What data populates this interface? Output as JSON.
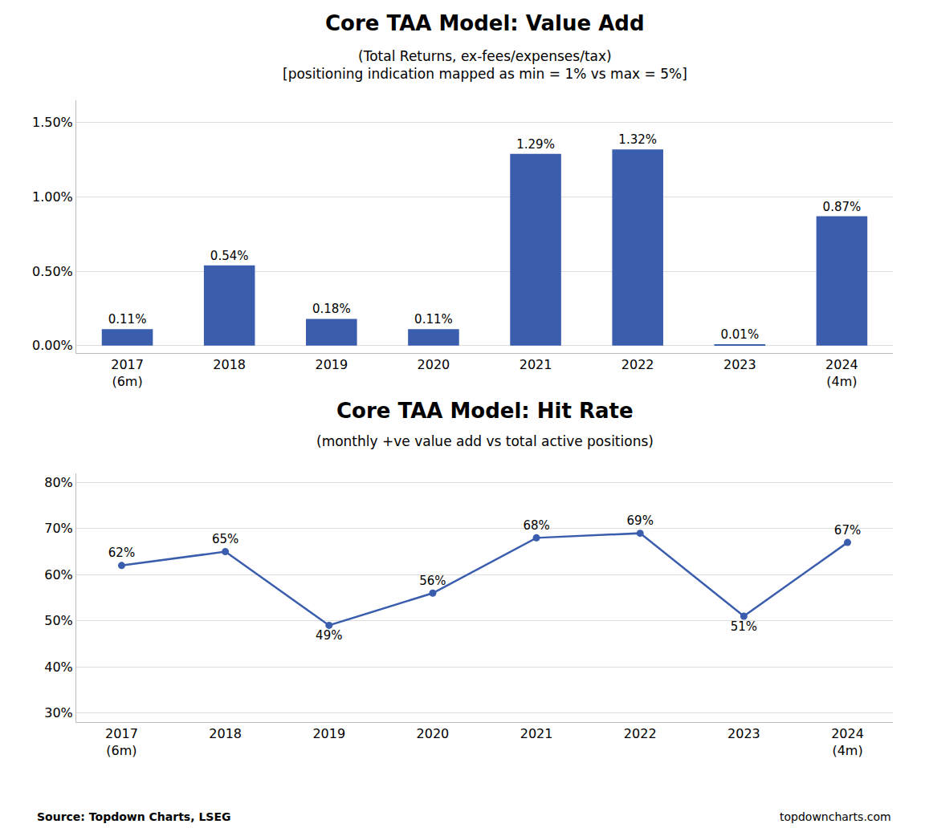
{
  "chart_data": [
    {
      "type": "bar",
      "title": "Core TAA Model: Value Add",
      "subtitle": [
        "(Total Returns, ex-fees/expenses/tax)",
        "[positioning indication mapped as min = 1% vs max = 5%]"
      ],
      "categories": [
        "2017\n(6m)",
        "2018",
        "2019",
        "2020",
        "2021",
        "2022",
        "2023",
        "2024\n(4m)"
      ],
      "values": [
        0.0011,
        0.0054,
        0.0018,
        0.0011,
        0.0129,
        0.0132,
        0.0001,
        0.0087
      ],
      "value_labels": [
        "0.11%",
        "0.54%",
        "0.18%",
        "0.11%",
        "1.29%",
        "1.32%",
        "0.01%",
        "0.87%"
      ],
      "data_labels": true,
      "color": "#3A5DAE",
      "ylim": [
        -0.0005,
        0.0165
      ],
      "yticks": [
        {
          "value": 0.0,
          "label": "0.00%"
        },
        {
          "value": 0.005,
          "label": "0.50%"
        },
        {
          "value": 0.01,
          "label": "1.00%"
        },
        {
          "value": 0.015,
          "label": "1.50%"
        }
      ],
      "grid": true
    },
    {
      "type": "line",
      "title": "Core TAA Model: Hit Rate",
      "subtitle": [
        "(monthly +ve value add vs total active positions)"
      ],
      "categories": [
        "2017\n(6m)",
        "2018",
        "2019",
        "2020",
        "2021",
        "2022",
        "2023",
        "2024\n(4m)"
      ],
      "values": [
        0.62,
        0.65,
        0.49,
        0.56,
        0.68,
        0.69,
        0.51,
        0.67
      ],
      "value_labels": [
        "62%",
        "65%",
        "49%",
        "56%",
        "68%",
        "69%",
        "51%",
        "67%"
      ],
      "data_labels": true,
      "color": "#3A5DAE",
      "marker": "circle",
      "ylim": [
        0.28,
        0.82
      ],
      "yticks": [
        {
          "value": 0.3,
          "label": "30%"
        },
        {
          "value": 0.4,
          "label": "40%"
        },
        {
          "value": 0.5,
          "label": "50%"
        },
        {
          "value": 0.6,
          "label": "60%"
        },
        {
          "value": 0.7,
          "label": "70%"
        },
        {
          "value": 0.8,
          "label": "80%"
        }
      ],
      "grid": true,
      "annotations": [
        "Source: Topdown Charts, LSEG",
        "topdowncharts.com"
      ]
    }
  ]
}
